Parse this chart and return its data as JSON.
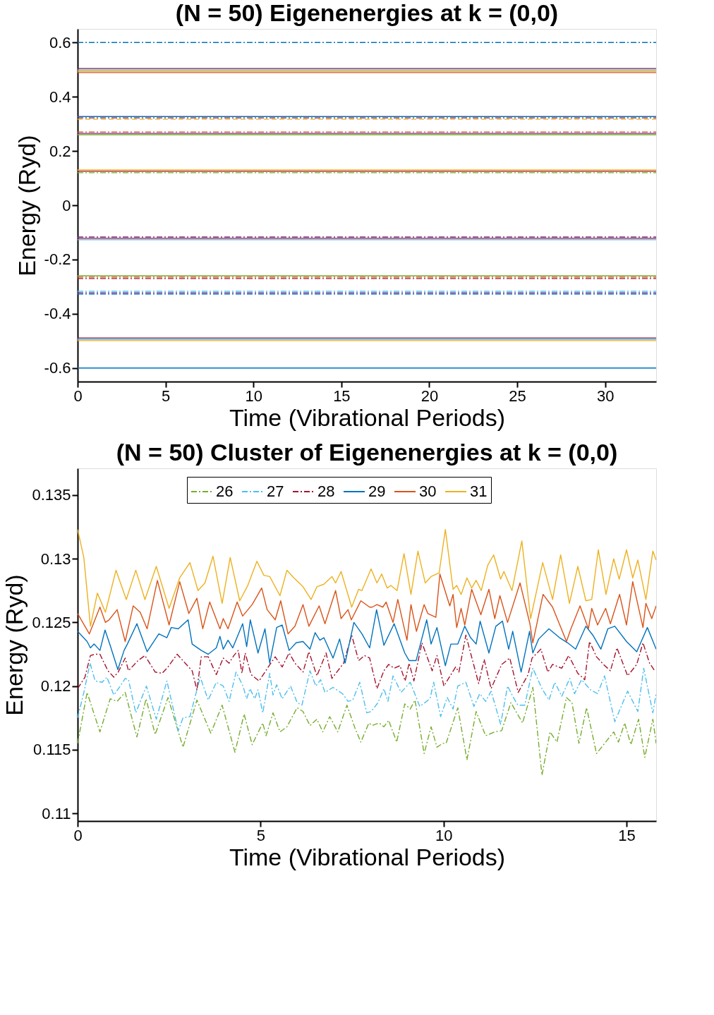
{
  "chart_data": [
    {
      "type": "line",
      "title": "(N = 50) Eigenenergies at k = (0,0)",
      "xlabel": "Time (Vibrational Periods)",
      "ylabel": "Energy (Ryd)",
      "xlim": [
        0,
        32.9
      ],
      "ylim": [
        -0.65,
        0.65
      ],
      "xticks": [
        0,
        5,
        10,
        15,
        20,
        25,
        30
      ],
      "yticks": [
        -0.6,
        -0.4,
        -0.2,
        0,
        0.2,
        0.4,
        0.6
      ],
      "legend": false,
      "x": [
        0,
        32.9
      ],
      "series": [
        {
          "color": "#0072bd",
          "line_style": "dashdot",
          "values": [
            0.6,
            0.6
          ]
        },
        {
          "color": "#a2142f",
          "line_style": "solid",
          "values": [
            0.504,
            0.504
          ]
        },
        {
          "color": "#4dbeee",
          "line_style": "solid",
          "values": [
            0.499,
            0.499
          ]
        },
        {
          "color": "#edb120",
          "line_style": "solid",
          "values": [
            0.494,
            0.494
          ]
        },
        {
          "color": "#d95319",
          "line_style": "solid",
          "values": [
            0.489,
            0.489
          ]
        },
        {
          "color": "#0072bd",
          "line_style": "solid",
          "values": [
            0.327,
            0.327
          ]
        },
        {
          "color": "#a2142f",
          "line_style": "dashdot",
          "values": [
            0.322,
            0.322
          ]
        },
        {
          "color": "#edb120",
          "line_style": "dashed",
          "values": [
            0.317,
            0.317
          ]
        },
        {
          "color": "#d95319",
          "line_style": "dashdot",
          "values": [
            0.27,
            0.27
          ]
        },
        {
          "color": "#7e2f8e",
          "line_style": "solid",
          "values": [
            0.265,
            0.265
          ]
        },
        {
          "color": "#77ac30",
          "line_style": "solid",
          "values": [
            0.26,
            0.26
          ]
        },
        {
          "color": "#edb120",
          "line_style": "solid",
          "values": [
            0.13,
            0.13
          ]
        },
        {
          "color": "#a2142f",
          "line_style": "solid",
          "values": [
            0.125,
            0.125
          ]
        },
        {
          "color": "#77ac30",
          "line_style": "dashdot",
          "values": [
            0.12,
            0.12
          ]
        },
        {
          "color": "#7e2f8e",
          "line_style": "dashdot",
          "values": [
            -0.117,
            -0.117
          ]
        },
        {
          "color": "#a2142f",
          "line_style": "solid",
          "values": [
            -0.122,
            -0.122
          ]
        },
        {
          "color": "#4dbeee",
          "line_style": "solid",
          "values": [
            -0.127,
            -0.127
          ]
        },
        {
          "color": "#77ac30",
          "line_style": "solid",
          "values": [
            -0.26,
            -0.26
          ]
        },
        {
          "color": "#d95319",
          "line_style": "dashdot",
          "values": [
            -0.265,
            -0.265
          ]
        },
        {
          "color": "#a2142f",
          "line_style": "dashdot",
          "values": [
            -0.27,
            -0.27
          ]
        },
        {
          "color": "#4dbeee",
          "line_style": "dashdot",
          "values": [
            -0.317,
            -0.317
          ]
        },
        {
          "color": "#7e2f8e",
          "line_style": "dashdot",
          "values": [
            -0.322,
            -0.322
          ]
        },
        {
          "color": "#0072bd",
          "line_style": "dashdot",
          "values": [
            -0.327,
            -0.327
          ]
        },
        {
          "color": "#a2142f",
          "line_style": "solid",
          "values": [
            -0.489,
            -0.489
          ]
        },
        {
          "color": "#4dbeee",
          "line_style": "solid",
          "values": [
            -0.494,
            -0.494
          ]
        },
        {
          "color": "#edb120",
          "line_style": "solid",
          "values": [
            -0.499,
            -0.499
          ]
        },
        {
          "color": "#0072bd",
          "line_style": "solid",
          "values": [
            -0.6,
            -0.6
          ]
        }
      ]
    },
    {
      "type": "line",
      "title": "(N = 50) Cluster of Eigenenergies at k = (0,0)",
      "xlabel": "Time (Vibrational Periods)",
      "ylabel": "Energy (Ryd)",
      "xlim": [
        0,
        15.81
      ],
      "ylim": [
        0.1094,
        0.1371
      ],
      "xticks": [
        0,
        5,
        10,
        15
      ],
      "yticks": [
        0.11,
        0.115,
        0.12,
        0.125,
        0.13,
        0.135
      ],
      "legend": "top",
      "series": [
        {
          "name": "26",
          "color": "#77ac30",
          "line_style": "dashdot",
          "x": [
            0,
            0.26,
            0.61,
            0.89,
            1.08,
            1.3,
            1.62,
            1.87,
            2.12,
            2.47,
            2.88,
            3.26,
            3.64,
            3.95,
            4.3,
            4.55,
            4.77,
            5.06,
            5.15,
            5.34,
            5.53,
            5.72,
            6.0,
            6.16,
            6.35,
            6.54,
            6.7,
            6.89,
            7.11,
            7.36,
            7.58,
            7.74,
            7.96,
            8.05,
            8.24,
            8.37,
            8.5,
            8.72,
            8.94,
            9.09,
            9.22,
            9.47,
            9.66,
            9.82,
            9.98,
            10.07,
            10.39,
            10.64,
            10.89,
            11.15,
            11.4,
            11.59,
            11.84,
            12.16,
            12.44,
            12.69,
            12.91,
            13.1,
            13.36,
            13.51,
            13.7,
            13.91,
            14.18,
            14.43,
            14.65,
            14.78,
            14.95,
            15.12,
            15.33,
            15.5,
            15.72,
            15.81
          ],
          "values": [
            0.1155,
            0.1195,
            0.1164,
            0.119,
            0.1188,
            0.1195,
            0.116,
            0.119,
            0.1162,
            0.1191,
            0.1152,
            0.1189,
            0.1163,
            0.1185,
            0.1148,
            0.1178,
            0.1154,
            0.1171,
            0.1161,
            0.1179,
            0.1164,
            0.1168,
            0.1183,
            0.118,
            0.1169,
            0.1174,
            0.1164,
            0.1176,
            0.1164,
            0.1185,
            0.1167,
            0.1156,
            0.1171,
            0.1169,
            0.1171,
            0.1168,
            0.1173,
            0.1156,
            0.1186,
            0.1182,
            0.1189,
            0.1147,
            0.1168,
            0.1152,
            0.1155,
            0.1155,
            0.1183,
            0.1142,
            0.118,
            0.1161,
            0.1164,
            0.1165,
            0.1187,
            0.1171,
            0.1199,
            0.113,
            0.1164,
            0.1156,
            0.1191,
            0.1187,
            0.1155,
            0.1183,
            0.1147,
            0.1156,
            0.1164,
            0.1156,
            0.1171,
            0.1154,
            0.1174,
            0.1144,
            0.1174,
            0.1155
          ]
        },
        {
          "name": "27",
          "color": "#4dbeee",
          "line_style": "dashdot",
          "x": [
            0,
            0.17,
            0.34,
            0.48,
            0.67,
            0.8,
            0.99,
            1.14,
            1.3,
            1.39,
            1.59,
            1.88,
            2.15,
            2.44,
            2.75,
            2.88,
            3.07,
            3.35,
            3.57,
            3.79,
            3.98,
            4.14,
            4.33,
            4.52,
            4.62,
            4.71,
            4.84,
            4.93,
            5.06,
            5.25,
            5.34,
            5.44,
            5.59,
            5.82,
            6.0,
            6.13,
            6.35,
            6.51,
            6.64,
            6.76,
            6.98,
            7.24,
            7.39,
            7.52,
            7.71,
            7.9,
            8.02,
            8.21,
            8.37,
            8.48,
            8.62,
            8.84,
            9.09,
            9.35,
            9.63,
            9.73,
            9.92,
            10.1,
            10.26,
            10.39,
            10.61,
            10.83,
            10.99,
            11.15,
            11.3,
            11.56,
            11.75,
            11.91,
            12.03,
            12.22,
            12.44,
            12.69,
            12.88,
            13.04,
            13.23,
            13.45,
            13.58,
            13.77,
            14.02,
            14.21,
            14.4,
            14.68,
            15.03,
            15.31,
            15.47,
            15.72,
            15.81
          ],
          "values": [
            0.1175,
            0.1195,
            0.1218,
            0.1204,
            0.1203,
            0.1207,
            0.1193,
            0.1199,
            0.1206,
            0.1205,
            0.1179,
            0.12,
            0.1174,
            0.1204,
            0.1165,
            0.1175,
            0.1176,
            0.1207,
            0.1189,
            0.1203,
            0.12,
            0.1188,
            0.1211,
            0.12,
            0.119,
            0.1198,
            0.119,
            0.1197,
            0.1179,
            0.121,
            0.1193,
            0.1201,
            0.119,
            0.12,
            0.1187,
            0.1185,
            0.1212,
            0.12,
            0.1205,
            0.1195,
            0.1199,
            0.1194,
            0.1188,
            0.1189,
            0.1203,
            0.1179,
            0.118,
            0.1187,
            0.1198,
            0.1188,
            0.1208,
            0.1195,
            0.1203,
            0.1184,
            0.119,
            0.1203,
            0.1176,
            0.1191,
            0.1182,
            0.12,
            0.1203,
            0.1184,
            0.1194,
            0.1188,
            0.1196,
            0.117,
            0.12,
            0.1191,
            0.1185,
            0.1185,
            0.1214,
            0.1198,
            0.1189,
            0.1203,
            0.1192,
            0.1206,
            0.1194,
            0.1205,
            0.1197,
            0.1194,
            0.1208,
            0.1172,
            0.1196,
            0.118,
            0.1214,
            0.1179,
            0.1194
          ]
        },
        {
          "name": "28",
          "color": "#a2142f",
          "line_style": "dashdot",
          "x": [
            0,
            0.2,
            0.35,
            0.48,
            0.61,
            0.83,
            0.99,
            1.11,
            1.3,
            1.39,
            1.65,
            1.84,
            2.12,
            2.31,
            2.47,
            2.72,
            2.94,
            3.13,
            3.26,
            3.38,
            3.57,
            3.79,
            3.98,
            4.14,
            4.27,
            4.39,
            4.49,
            4.58,
            4.74,
            4.96,
            5.21,
            5.4,
            5.59,
            5.78,
            5.94,
            6.16,
            6.32,
            6.54,
            6.79,
            6.95,
            7.27,
            7.49,
            7.68,
            7.84,
            7.98,
            8.18,
            8.37,
            8.5,
            8.65,
            8.81,
            8.95,
            9.06,
            9.19,
            9.41,
            9.69,
            9.82,
            10.01,
            10.33,
            10.42,
            10.61,
            10.96,
            11.11,
            11.3,
            11.59,
            11.81,
            12.04,
            12.31,
            12.42,
            12.66,
            12.85,
            12.98,
            13.23,
            13.42,
            13.67,
            13.86,
            13.99,
            14.18,
            14.37,
            14.56,
            14.74,
            15.03,
            15.28,
            15.45,
            15.63,
            15.77
          ],
          "values": [
            0.1198,
            0.1207,
            0.1224,
            0.1225,
            0.1225,
            0.1212,
            0.1207,
            0.1211,
            0.1222,
            0.1212,
            0.122,
            0.1224,
            0.1211,
            0.121,
            0.1215,
            0.1225,
            0.1218,
            0.1212,
            0.1197,
            0.1223,
            0.1223,
            0.1209,
            0.1222,
            0.1218,
            0.1224,
            0.1228,
            0.121,
            0.1226,
            0.1209,
            0.1204,
            0.1215,
            0.1223,
            0.1215,
            0.1226,
            0.1218,
            0.1211,
            0.1227,
            0.1208,
            0.1226,
            0.1206,
            0.1218,
            0.124,
            0.122,
            0.1224,
            0.1222,
            0.1198,
            0.1212,
            0.1217,
            0.1214,
            0.1216,
            0.1204,
            0.1218,
            0.1204,
            0.1234,
            0.1212,
            0.1224,
            0.12,
            0.1215,
            0.1211,
            0.124,
            0.1202,
            0.1221,
            0.1198,
            0.1217,
            0.1222,
            0.1195,
            0.1209,
            0.1222,
            0.1229,
            0.1211,
            0.1217,
            0.1214,
            0.1224,
            0.121,
            0.1205,
            0.1235,
            0.1223,
            0.1217,
            0.1212,
            0.123,
            0.1208,
            0.1217,
            0.1234,
            0.1218,
            0.1212
          ]
        },
        {
          "name": "29",
          "color": "#0072bd",
          "line_style": "solid",
          "x": [
            0,
            0.26,
            0.35,
            0.45,
            0.61,
            0.75,
            0.89,
            1.1,
            1.27,
            1.36,
            1.62,
            1.9,
            2.22,
            2.44,
            2.56,
            2.75,
            3.02,
            3.13,
            3.38,
            3.57,
            3.79,
            3.89,
            3.98,
            4.11,
            4.24,
            4.51,
            4.62,
            4.72,
            4.93,
            5.12,
            5.25,
            5.44,
            5.59,
            5.78,
            5.97,
            6.16,
            6.35,
            6.49,
            6.62,
            6.73,
            6.98,
            7.16,
            7.31,
            7.55,
            7.77,
            7.98,
            8.17,
            8.37,
            8.65,
            8.94,
            9.06,
            9.25,
            9.54,
            9.66,
            9.82,
            10.05,
            10.2,
            10.39,
            10.58,
            10.74,
            10.89,
            11.0,
            11.24,
            11.43,
            11.61,
            11.78,
            11.89,
            12.12,
            12.35,
            12.44,
            12.6,
            12.88,
            13.17,
            13.39,
            13.61,
            13.89,
            14.08,
            14.3,
            14.49,
            14.68,
            15.0,
            15.28,
            15.57,
            15.81
          ],
          "values": [
            0.1243,
            0.1235,
            0.123,
            0.1233,
            0.1228,
            0.1244,
            0.1232,
            0.1213,
            0.1228,
            0.1233,
            0.1249,
            0.1227,
            0.1241,
            0.1238,
            0.1246,
            0.1245,
            0.1252,
            0.1233,
            0.1228,
            0.1225,
            0.123,
            0.1239,
            0.1229,
            0.1236,
            0.123,
            0.1249,
            0.1231,
            0.1252,
            0.1226,
            0.1245,
            0.1218,
            0.1246,
            0.1248,
            0.1228,
            0.1234,
            0.1235,
            0.1229,
            0.1242,
            0.1236,
            0.1238,
            0.1222,
            0.1237,
            0.1218,
            0.125,
            0.1241,
            0.123,
            0.126,
            0.1232,
            0.1249,
            0.1226,
            0.122,
            0.122,
            0.1252,
            0.1233,
            0.1246,
            0.1216,
            0.1233,
            0.1233,
            0.1247,
            0.1238,
            0.1233,
            0.1251,
            0.1226,
            0.1247,
            0.1251,
            0.1229,
            0.1243,
            0.1211,
            0.1243,
            0.1226,
            0.1237,
            0.1245,
            0.1238,
            0.1234,
            0.1229,
            0.1247,
            0.124,
            0.1229,
            0.1245,
            0.1247,
            0.1235,
            0.1227,
            0.1246,
            0.1229
          ]
        },
        {
          "name": "30",
          "color": "#d95319",
          "line_style": "solid",
          "x": [
            0,
            0.32,
            0.61,
            0.76,
            0.86,
            1.08,
            1.3,
            1.52,
            1.71,
            1.9,
            2.18,
            2.5,
            2.79,
            3.04,
            3.26,
            3.42,
            3.61,
            3.89,
            3.98,
            4.11,
            4.36,
            4.51,
            4.77,
            5.03,
            5.18,
            5.4,
            5.55,
            5.75,
            5.94,
            6.16,
            6.32,
            6.6,
            6.76,
            7.05,
            7.2,
            7.39,
            7.48,
            7.74,
            7.98,
            8.05,
            8.18,
            8.34,
            8.43,
            8.62,
            8.75,
            9.0,
            9.11,
            9.26,
            9.47,
            9.57,
            9.79,
            9.9,
            10.17,
            10.26,
            10.36,
            10.48,
            10.58,
            10.77,
            11.02,
            11.24,
            11.4,
            11.54,
            11.75,
            12.09,
            12.36,
            12.44,
            12.72,
            12.98,
            13.36,
            13.48,
            13.73,
            13.96,
            14.05,
            14.21,
            14.43,
            14.56,
            14.81,
            15.0,
            15.17,
            15.45,
            15.53,
            15.69,
            15.81
          ],
          "values": [
            0.1257,
            0.1241,
            0.1262,
            0.125,
            0.1252,
            0.126,
            0.1235,
            0.1263,
            0.1258,
            0.1245,
            0.1283,
            0.1248,
            0.1282,
            0.1257,
            0.1269,
            0.1245,
            0.1266,
            0.1245,
            0.1253,
            0.1245,
            0.1266,
            0.1255,
            0.1264,
            0.1277,
            0.126,
            0.1252,
            0.1267,
            0.1241,
            0.1247,
            0.1264,
            0.1247,
            0.1263,
            0.1249,
            0.1275,
            0.1253,
            0.126,
            0.1252,
            0.1267,
            0.1262,
            0.1262,
            0.1264,
            0.1262,
            0.1266,
            0.125,
            0.1268,
            0.1236,
            0.1264,
            0.1243,
            0.1264,
            0.1257,
            0.1254,
            0.1288,
            0.1263,
            0.1272,
            0.1246,
            0.1261,
            0.1248,
            0.1276,
            0.1256,
            0.1276,
            0.1253,
            0.1271,
            0.125,
            0.1281,
            0.1249,
            0.1234,
            0.1272,
            0.1262,
            0.1235,
            0.1245,
            0.1263,
            0.1245,
            0.1261,
            0.1248,
            0.1261,
            0.1249,
            0.1272,
            0.1248,
            0.1282,
            0.1246,
            0.1265,
            0.1253,
            0.1263
          ]
        },
        {
          "name": "31",
          "color": "#edb120",
          "line_style": "solid",
          "x": [
            0,
            0.17,
            0.35,
            0.54,
            0.76,
            1.05,
            1.33,
            1.59,
            1.84,
            2.15,
            2.5,
            2.79,
            3.07,
            3.29,
            3.48,
            3.7,
            3.95,
            4.17,
            4.43,
            4.65,
            4.9,
            5.09,
            5.25,
            5.53,
            5.72,
            5.91,
            6.16,
            6.38,
            6.54,
            6.73,
            6.95,
            7.05,
            7.2,
            7.49,
            7.68,
            7.77,
            8.02,
            8.18,
            8.31,
            8.46,
            8.56,
            8.73,
            8.92,
            9.11,
            9.3,
            9.5,
            9.66,
            9.88,
            10.05,
            10.26,
            10.36,
            10.48,
            10.64,
            10.77,
            10.89,
            11.03,
            11.21,
            11.37,
            11.56,
            11.65,
            11.87,
            12.14,
            12.38,
            12.71,
            12.98,
            13.2,
            13.44,
            13.67,
            13.89,
            14.05,
            14.23,
            14.44,
            14.65,
            14.8,
            15.0,
            15.17,
            15.31,
            15.53,
            15.72,
            15.81
          ],
          "values": [
            0.1323,
            0.1301,
            0.1247,
            0.1273,
            0.1258,
            0.1291,
            0.1268,
            0.1291,
            0.1268,
            0.1294,
            0.1261,
            0.1285,
            0.1297,
            0.1275,
            0.1281,
            0.1302,
            0.1265,
            0.1301,
            0.1267,
            0.1279,
            0.1298,
            0.1287,
            0.1286,
            0.1271,
            0.1291,
            0.1285,
            0.1278,
            0.1268,
            0.1278,
            0.128,
            0.1286,
            0.1281,
            0.129,
            0.1262,
            0.1276,
            0.1275,
            0.1292,
            0.1281,
            0.1288,
            0.1277,
            0.1279,
            0.1275,
            0.1304,
            0.1272,
            0.1306,
            0.1281,
            0.1286,
            0.1289,
            0.1323,
            0.1276,
            0.1279,
            0.1272,
            0.1285,
            0.1277,
            0.1283,
            0.1275,
            0.1295,
            0.1303,
            0.1284,
            0.129,
            0.1275,
            0.1314,
            0.1253,
            0.1297,
            0.1268,
            0.1303,
            0.1265,
            0.1294,
            0.1267,
            0.1268,
            0.1307,
            0.1272,
            0.13,
            0.1284,
            0.1307,
            0.1285,
            0.1299,
            0.1268,
            0.1306,
            0.1299
          ]
        }
      ]
    }
  ]
}
